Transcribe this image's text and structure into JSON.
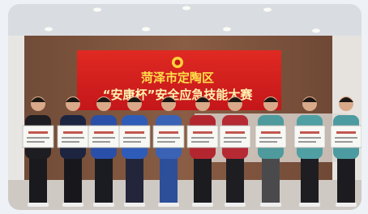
{
  "banner": {
    "line1": "菏泽市定陶区",
    "line2": "“安康杯”安全应急技能大赛"
  }
}
